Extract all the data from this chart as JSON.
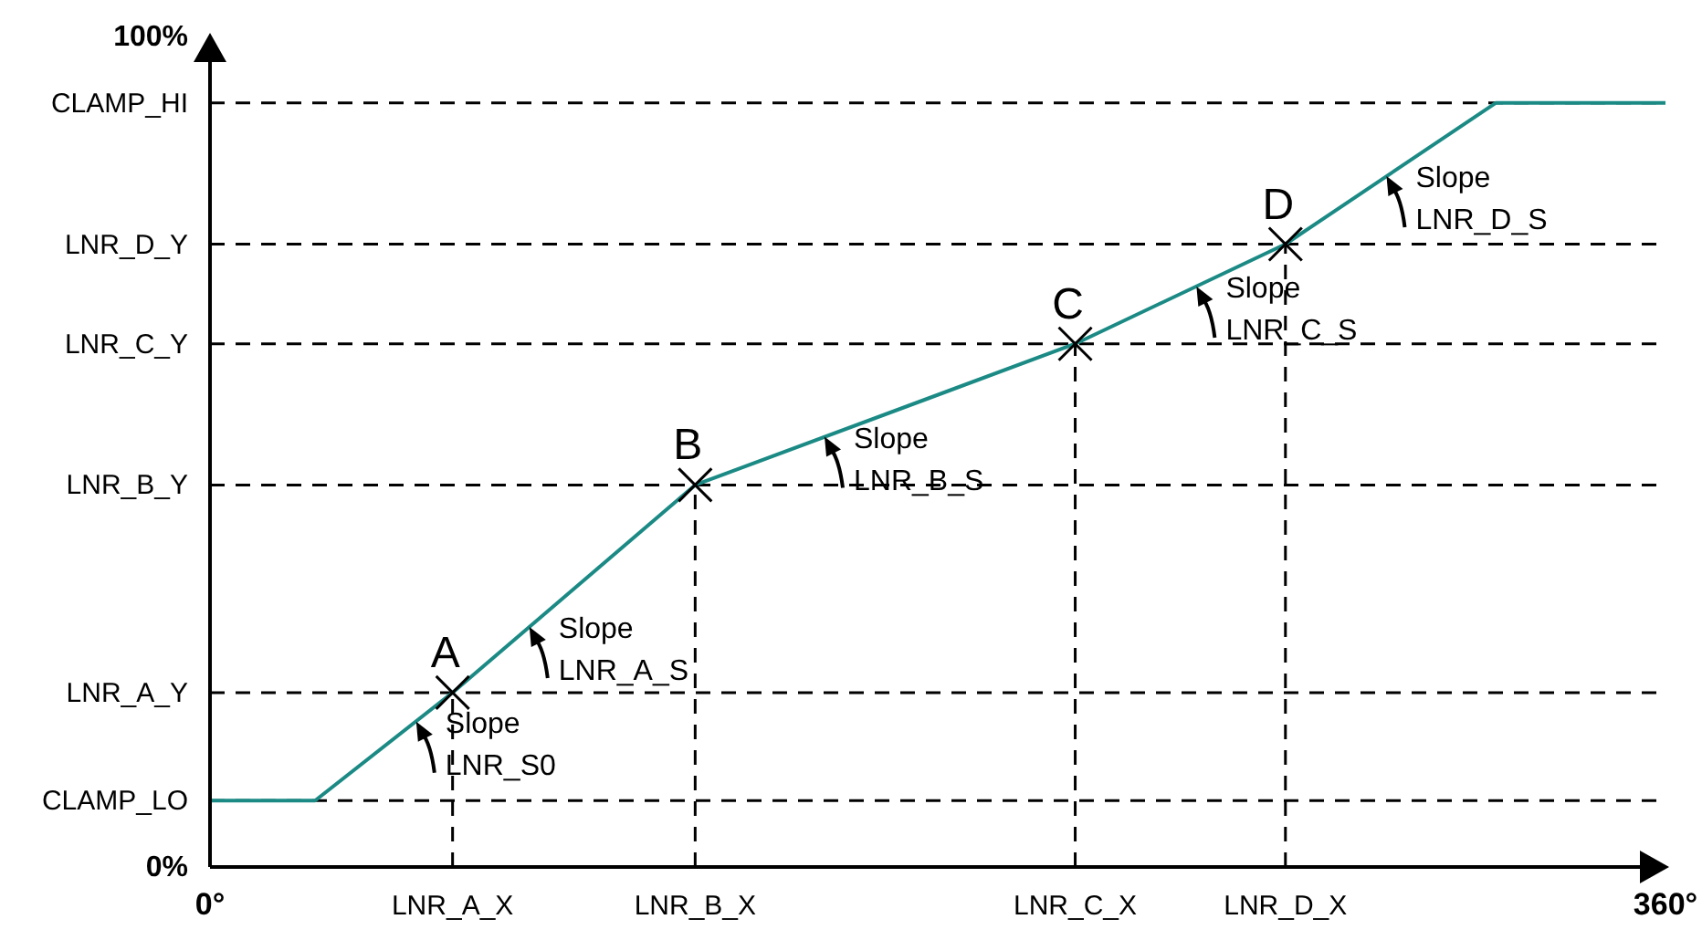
{
  "chart_data": {
    "type": "line",
    "xlim": [
      0,
      360
    ],
    "ylim": [
      0,
      100
    ],
    "xticks": [
      {
        "value": 0,
        "label": "0°"
      },
      {
        "value": 60,
        "label": "LNR_A_X"
      },
      {
        "value": 120,
        "label": "LNR_B_X"
      },
      {
        "value": 214,
        "label": "LNR_C_X"
      },
      {
        "value": 266,
        "label": "LNR_D_X"
      },
      {
        "value": 360,
        "label": "360°"
      }
    ],
    "yticks": [
      {
        "value": 0,
        "label": "0%"
      },
      {
        "value": 8,
        "label": "CLAMP_LO"
      },
      {
        "value": 21,
        "label": "LNR_A_Y"
      },
      {
        "value": 46,
        "label": "LNR_B_Y"
      },
      {
        "value": 63,
        "label": "LNR_C_Y"
      },
      {
        "value": 75,
        "label": "LNR_D_Y"
      },
      {
        "value": 92,
        "label": "CLAMP_HI"
      },
      {
        "value": 100,
        "label": "100%"
      }
    ],
    "series": [
      {
        "color": "#1b8a85",
        "line_style": "solid",
        "x": [
          0,
          26,
          60,
          120,
          214,
          266,
          318,
          360
        ],
        "values": [
          8,
          8,
          21,
          46,
          63,
          75,
          92,
          92
        ]
      },
      {
        "type": "scatter",
        "color": "#000000",
        "marker": "cross",
        "x": [
          60,
          120,
          214,
          266
        ],
        "values": [
          21,
          46,
          63,
          75
        ]
      }
    ],
    "ref_lines": [
      {
        "axis": "y",
        "value": 8,
        "label": null,
        "color": "#000000",
        "line_style": "dashed"
      },
      {
        "axis": "y",
        "value": 21,
        "label": null,
        "color": "#000000",
        "line_style": "dashed"
      },
      {
        "axis": "y",
        "value": 46,
        "label": null,
        "color": "#000000",
        "line_style": "dashed"
      },
      {
        "axis": "y",
        "value": 63,
        "label": null,
        "color": "#000000",
        "line_style": "dashed"
      },
      {
        "axis": "y",
        "value": 75,
        "label": null,
        "color": "#000000",
        "line_style": "dashed"
      },
      {
        "axis": "y",
        "value": 92,
        "label": null,
        "color": "#000000",
        "line_style": "dashed"
      },
      {
        "axis": "x",
        "value": 60,
        "label": null,
        "color": "#000000",
        "line_style": "dashed"
      },
      {
        "axis": "x",
        "value": 120,
        "label": null,
        "color": "#000000",
        "line_style": "dashed"
      },
      {
        "axis": "x",
        "value": 214,
        "label": null,
        "color": "#000000",
        "line_style": "dashed"
      },
      {
        "axis": "x",
        "value": 266,
        "label": null,
        "color": "#000000",
        "line_style": "dashed"
      }
    ],
    "annotations": [
      {
        "text": "A",
        "x": 60,
        "y": 21
      },
      {
        "text": "B",
        "x": 120,
        "y": 46
      },
      {
        "text": "C",
        "x": 214,
        "y": 63
      },
      {
        "text": "D",
        "x": 266,
        "y": 75
      },
      {
        "text": "Slope\nLNR_S0",
        "x": 51,
        "y": 17.5
      },
      {
        "text": "Slope\nLNR_A_S",
        "x": 79,
        "y": 28.9
      },
      {
        "text": "Slope\nLNR_B_S",
        "x": 152,
        "y": 51.8
      },
      {
        "text": "Slope\nLNR_C_S",
        "x": 244,
        "y": 69.9
      },
      {
        "text": "Slope\nLNR_D_S",
        "x": 291,
        "y": 83.2
      }
    ],
    "grid": false
  }
}
